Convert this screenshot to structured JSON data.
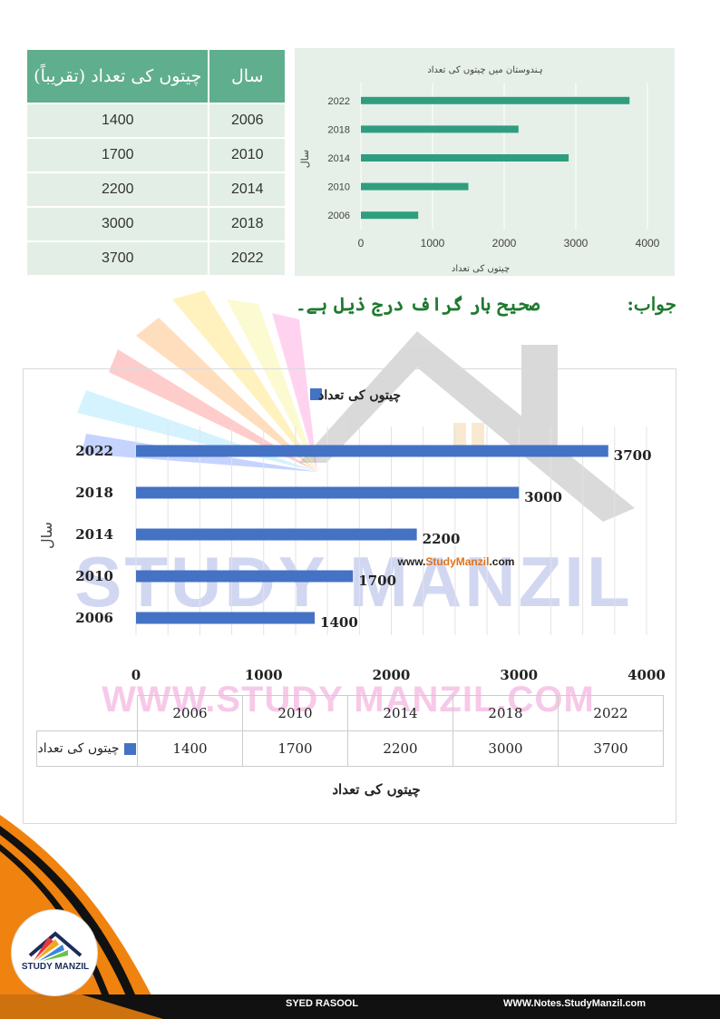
{
  "top_table": {
    "header_count": "چیتوں کی تعداد (تقریباً)",
    "header_year": "سال",
    "rows": [
      {
        "count": "1400",
        "year": "2006"
      },
      {
        "count": "1700",
        "year": "2010"
      },
      {
        "count": "2200",
        "year": "2014"
      },
      {
        "count": "3000",
        "year": "2018"
      },
      {
        "count": "3700",
        "year": "2022"
      }
    ]
  },
  "answer": {
    "prefix": "جواب:",
    "text": "صحیح بار گراف درج ذیل ہے۔"
  },
  "watermarks": {
    "big": "STUDY MANZIL",
    "url": "WWW.STUDY MANZIL.COM",
    "center_url_prefix": "www.",
    "center_url_brand": "StudyManzil",
    "center_url_suffix": ".com"
  },
  "colors": {
    "table_header": "#5fae8e",
    "table_cell": "#e3efe6",
    "small_bar": "#2f9e7e",
    "big_bar": "#4472c4",
    "answer_text": "#1f7a2f",
    "footer_orange": "#f0820f"
  },
  "chart_data": [
    {
      "type": "bar",
      "orientation": "horizontal",
      "title": "ہندوستان میں چیتوں کی تعداد",
      "xlabel": "چیتوں کی تعداد",
      "ylabel": "سال",
      "categories": [
        "2006",
        "2010",
        "2014",
        "2018",
        "2022"
      ],
      "values": [
        800,
        1500,
        2900,
        2200,
        3750
      ],
      "xlim": [
        0,
        4000
      ],
      "xticks": [
        "0",
        "1000",
        "2000",
        "3000",
        "4000"
      ],
      "grid": "vertical"
    },
    {
      "type": "bar",
      "orientation": "horizontal",
      "legend": "چیتوں کی تعداد",
      "legend_position": "top",
      "xlabel": "چیتوں کی تعداد",
      "ylabel": "سال",
      "categories": [
        "2006",
        "2010",
        "2014",
        "2018",
        "2022"
      ],
      "series": [
        {
          "name": "چیتوں کی تعداد",
          "values": [
            1400,
            1700,
            2200,
            3000,
            3700
          ]
        }
      ],
      "data_labels": [
        "1400",
        "1700",
        "2200",
        "3000",
        "3700"
      ],
      "xlim": [
        0,
        4000
      ],
      "xticks": [
        "0",
        "1000",
        "2000",
        "3000",
        "4000"
      ],
      "grid": "vertical",
      "data_table": true
    }
  ],
  "footer": {
    "author": "SYED RASOOL",
    "website": "WWW.Notes.StudyManzil.com",
    "logo_text": "STUDY MANZIL"
  }
}
